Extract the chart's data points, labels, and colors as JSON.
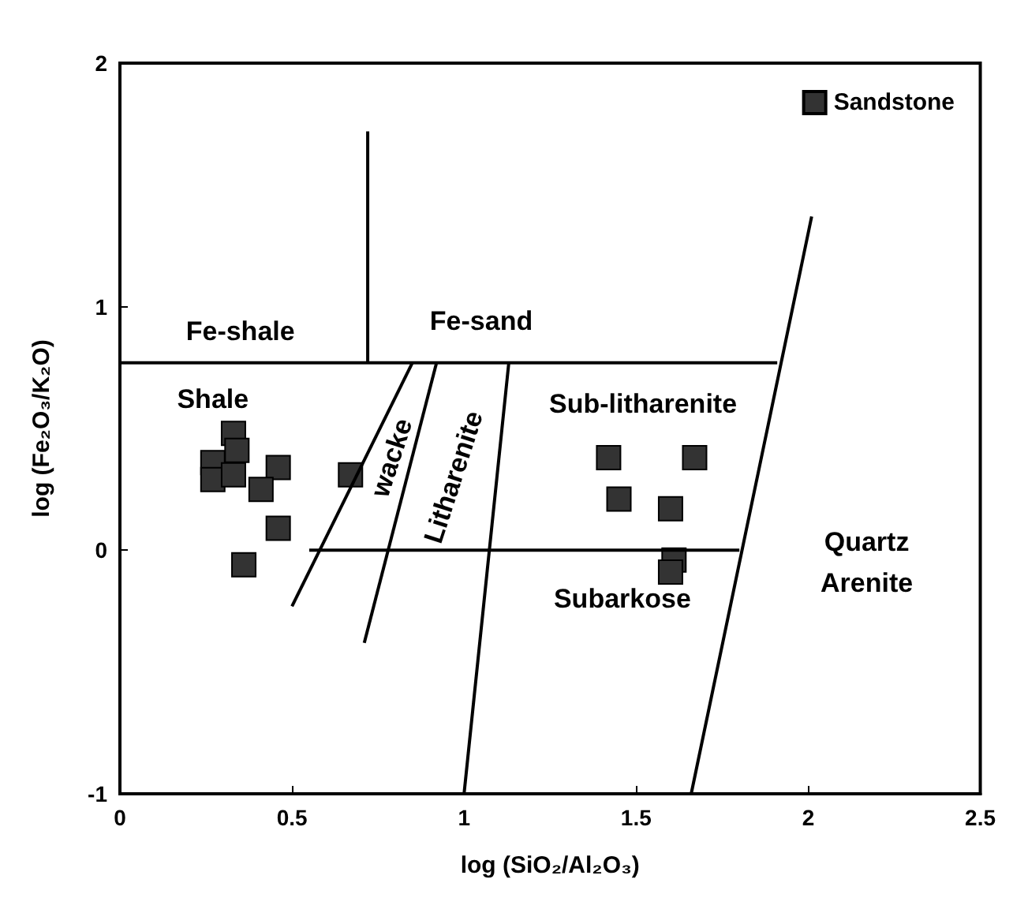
{
  "chart_data": {
    "type": "scatter",
    "xlabel": "log (SiO₂/Al₂O₃)",
    "ylabel": "log (Fe₂O₃/K₂O)",
    "xlim": [
      0,
      2.5
    ],
    "ylim": [
      -1,
      2
    ],
    "xticks": [
      0,
      0.5,
      1,
      1.5,
      2,
      2.5
    ],
    "yticks": [
      -1,
      0,
      1,
      2
    ],
    "grid": false,
    "legend": "top right",
    "marker": "square",
    "series": [
      {
        "name": "Sandstone",
        "color": "#333333",
        "x": [
          0.33,
          0.34,
          0.27,
          0.27,
          0.33,
          0.46,
          0.41,
          0.46,
          0.36,
          0.67,
          1.42,
          1.67,
          1.45,
          1.6,
          1.61,
          1.6
        ],
        "values": [
          0.48,
          0.41,
          0.36,
          0.29,
          0.31,
          0.34,
          0.25,
          0.09,
          -0.06,
          0.31,
          0.38,
          0.38,
          0.21,
          0.17,
          -0.04,
          -0.09
        ]
      },
      {
        "type": "line",
        "color": "#000000",
        "marker": "none",
        "x": [
          0,
          1.91
        ],
        "values": [
          0.77,
          0.77
        ]
      },
      {
        "type": "line",
        "color": "#000000",
        "marker": "none",
        "x": [
          0.72,
          0.72
        ],
        "values": [
          0.77,
          1.72
        ]
      },
      {
        "type": "line",
        "color": "#000000",
        "marker": "none",
        "x": [
          0.55,
          1.8
        ],
        "values": [
          0,
          0
        ]
      },
      {
        "type": "line",
        "color": "#000000",
        "marker": "none",
        "x": [
          0.5,
          0.85
        ],
        "values": [
          -0.23,
          0.77
        ]
      },
      {
        "type": "line",
        "color": "#000000",
        "marker": "none",
        "x": [
          0.71,
          0.92
        ],
        "values": [
          -0.38,
          0.77
        ]
      },
      {
        "type": "line",
        "color": "#000000",
        "marker": "none",
        "x": [
          1,
          1.13
        ],
        "values": [
          -1,
          0.77
        ]
      },
      {
        "type": "line",
        "color": "#000000",
        "marker": "none",
        "x": [
          1.66,
          2.01
        ],
        "values": [
          -1,
          1.37
        ]
      }
    ],
    "annotations": [
      "Fe-shale",
      "Fe-sand",
      "Shale",
      "wacke",
      "Litharenite",
      "Sub-litharenite",
      "Subarkose",
      "Quartz\nArenite"
    ]
  }
}
